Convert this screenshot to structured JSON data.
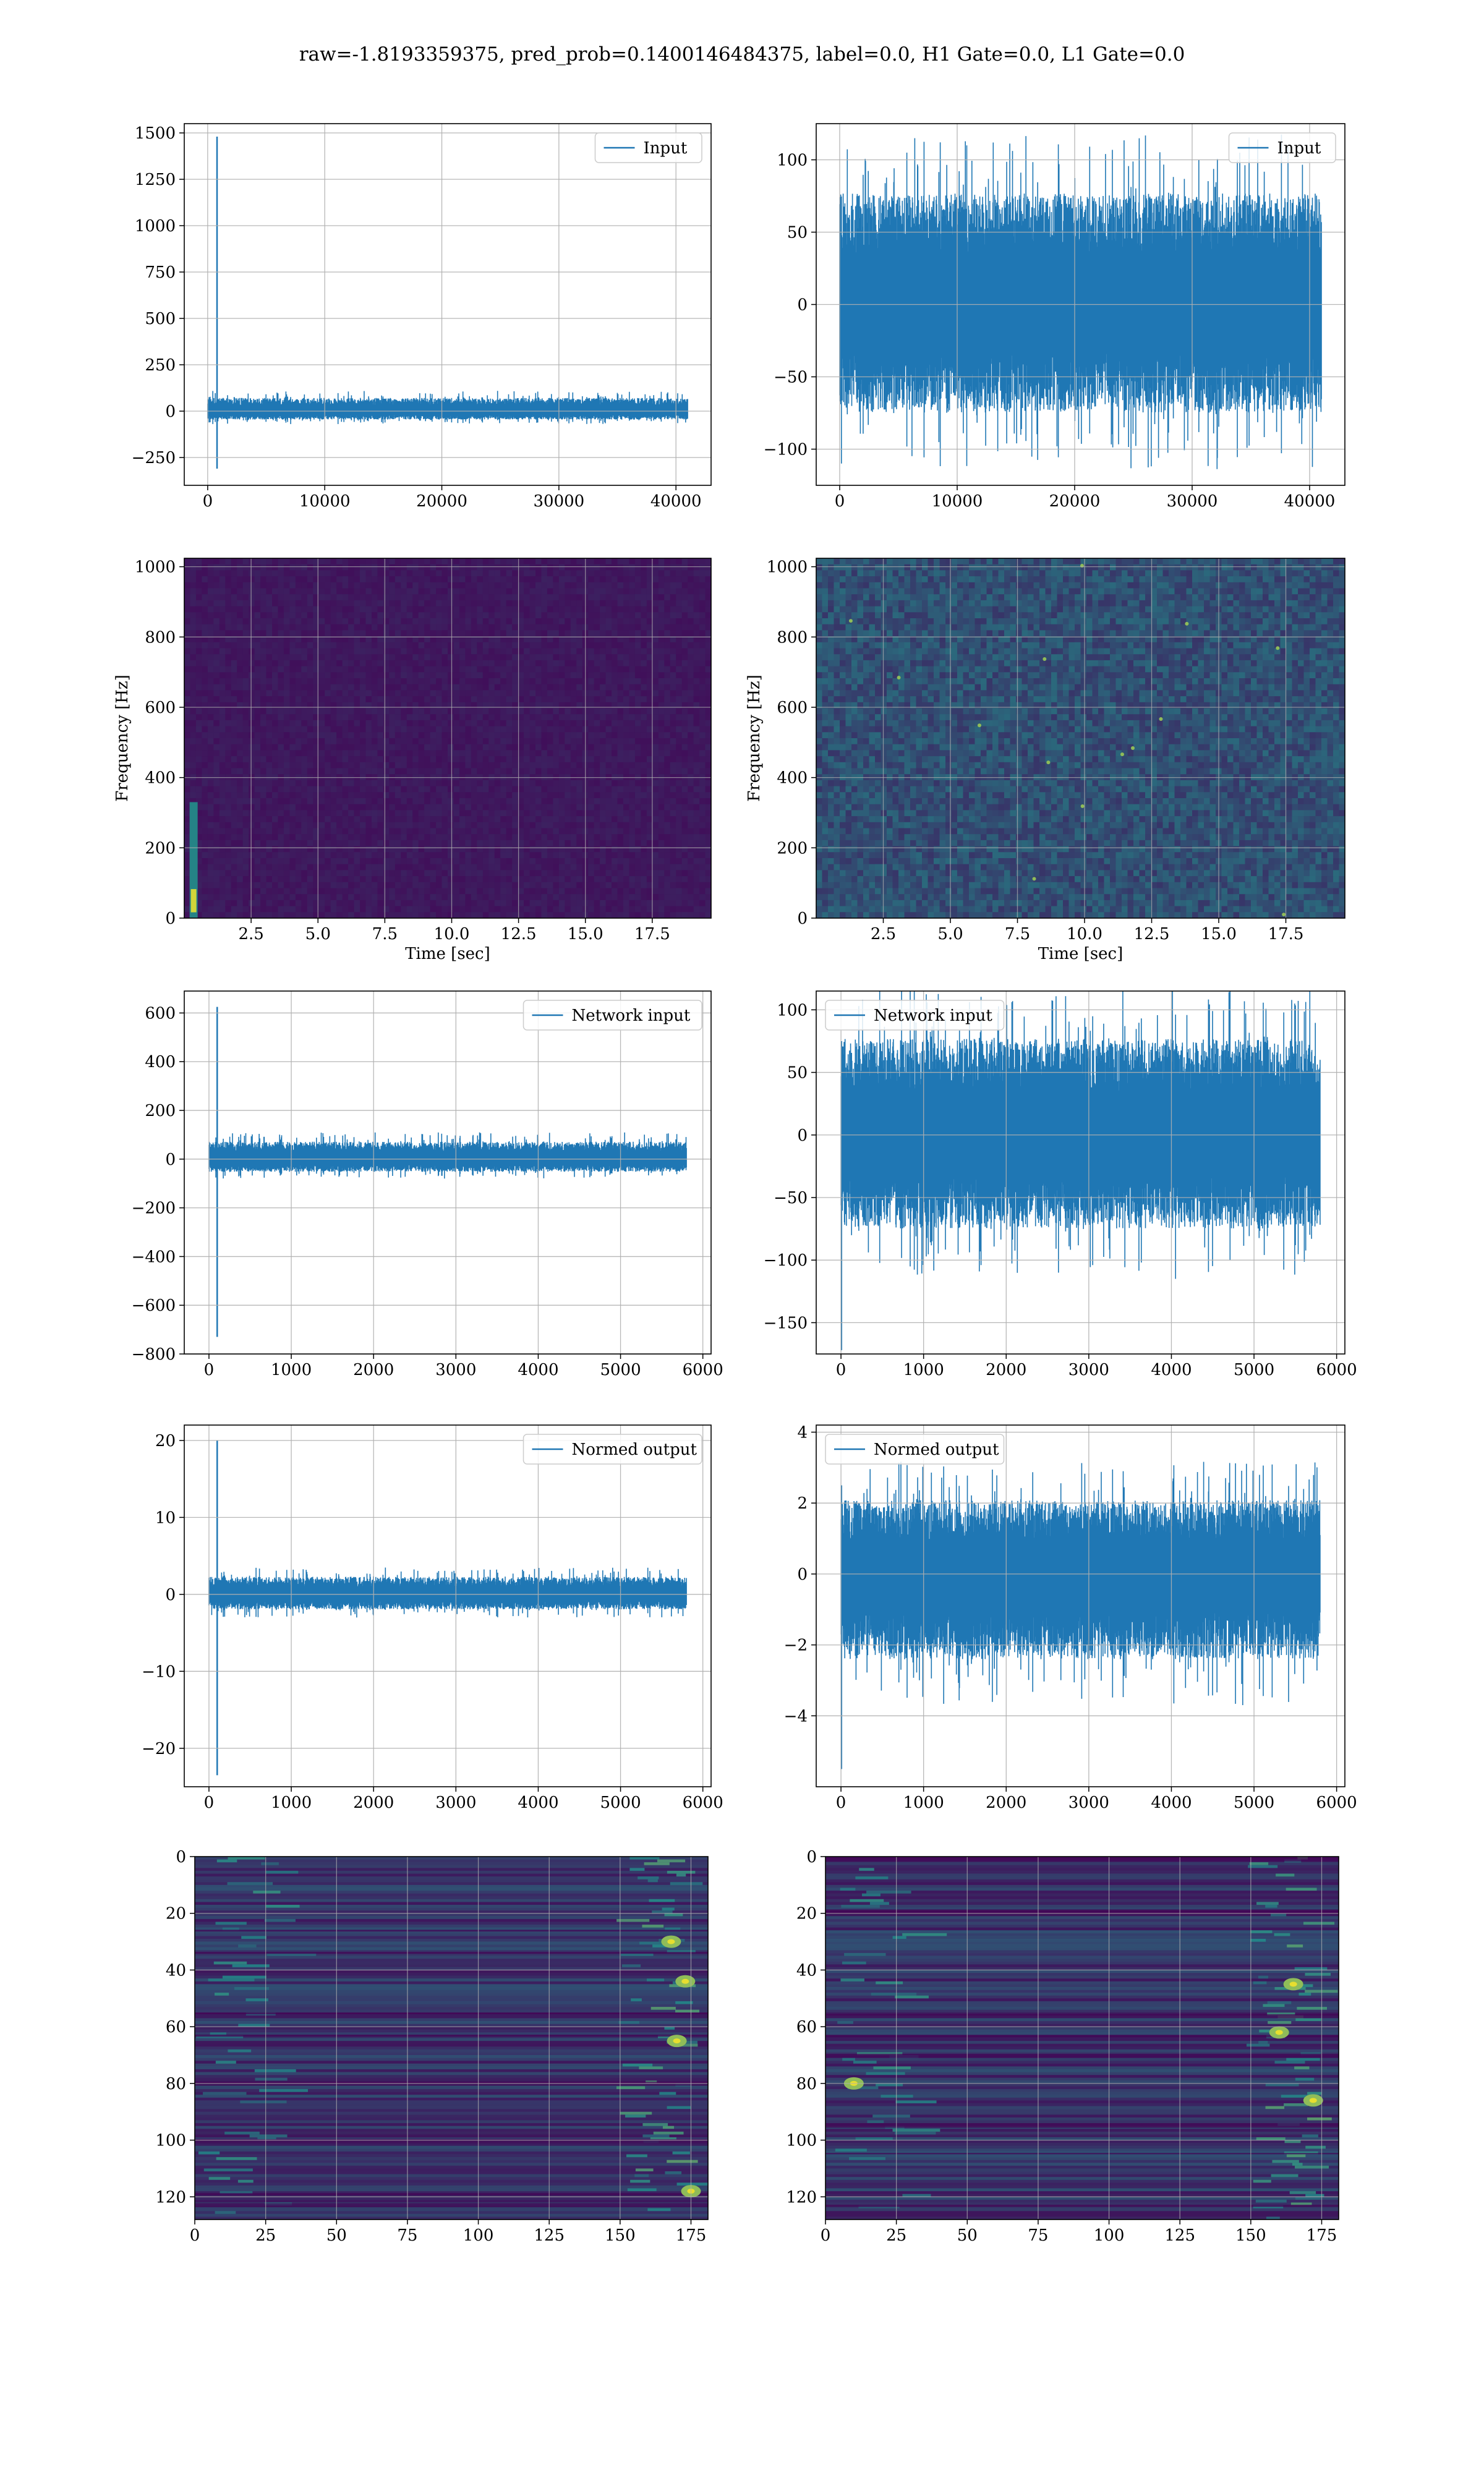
{
  "figure": {
    "title": "raw=-1.8193359375, pred_prob=0.1400146484375, label=0.0, H1 Gate=0.0, L1 Gate=0.0"
  },
  "colors": {
    "line": "#1f77b4",
    "grid": "#b0b0b0",
    "spec_background": "#3b1c5a",
    "viridis_low": "#440154",
    "viridis_mid": "#21918c",
    "viridis_high": "#fde725"
  },
  "chart_data": [
    {
      "id": "p11",
      "type": "line",
      "title": "",
      "xlabel": "",
      "ylabel": "",
      "legend": "Input",
      "legend_loc": "upper-right",
      "xlim": [
        -2000,
        43000
      ],
      "ylim": [
        -400,
        1550
      ],
      "xticks": [
        0,
        10000,
        20000,
        30000,
        40000
      ],
      "yticks": [
        -250,
        0,
        250,
        500,
        750,
        1000,
        1250,
        1500
      ],
      "grid": true,
      "signal": {
        "x_start": 0,
        "x_end": 41000,
        "noise_min": -70,
        "noise_max": 110,
        "spike_x": 800,
        "spike_max": 1480,
        "spike_min": -310
      }
    },
    {
      "id": "p12",
      "type": "line",
      "title": "",
      "xlabel": "",
      "ylabel": "",
      "legend": "Input",
      "legend_loc": "upper-right",
      "xlim": [
        -2000,
        43000
      ],
      "ylim": [
        -125,
        125
      ],
      "xticks": [
        0,
        10000,
        20000,
        30000,
        40000
      ],
      "yticks": [
        -100,
        -50,
        0,
        50,
        100
      ],
      "grid": true,
      "signal": {
        "x_start": 0,
        "x_end": 41000,
        "noise_min": -115,
        "noise_max": 118
      }
    },
    {
      "id": "p21",
      "type": "heatmap",
      "title": "",
      "xlabel": "Time [sec]",
      "ylabel": "Frequency [Hz]",
      "xlim": [
        0,
        19.7
      ],
      "ylim": [
        0,
        1024
      ],
      "xticks": [
        2.5,
        5.0,
        7.5,
        10.0,
        12.5,
        15.0,
        17.5
      ],
      "xtick_labels": [
        "2.5",
        "5.0",
        "7.5",
        "10.0",
        "12.5",
        "15.0",
        "17.5"
      ],
      "yticks": [
        0,
        200,
        400,
        600,
        800,
        1000
      ],
      "grid": true,
      "colormap": "viridis",
      "hotspot": {
        "t_range": [
          0.2,
          0.5
        ],
        "f_range": [
          0,
          330
        ]
      }
    },
    {
      "id": "p22",
      "type": "heatmap",
      "title": "",
      "xlabel": "Time [sec]",
      "ylabel": "Frequency [Hz]",
      "xlim": [
        0,
        19.7
      ],
      "ylim": [
        0,
        1024
      ],
      "xticks": [
        2.5,
        5.0,
        7.5,
        10.0,
        12.5,
        15.0,
        17.5
      ],
      "xtick_labels": [
        "2.5",
        "5.0",
        "7.5",
        "10.0",
        "12.5",
        "15.0",
        "17.5"
      ],
      "yticks": [
        0,
        200,
        400,
        600,
        800,
        1000
      ],
      "grid": true,
      "colormap": "viridis"
    },
    {
      "id": "p31",
      "type": "line",
      "title": "",
      "xlabel": "",
      "ylabel": "",
      "legend": "Network input",
      "legend_loc": "upper-right",
      "xlim": [
        -300,
        6100
      ],
      "ylim": [
        -800,
        690
      ],
      "xticks": [
        0,
        1000,
        2000,
        3000,
        4000,
        5000,
        6000
      ],
      "yticks": [
        -800,
        -600,
        -400,
        -200,
        0,
        200,
        400,
        600
      ],
      "grid": true,
      "signal": {
        "x_start": 0,
        "x_end": 5800,
        "noise_min": -80,
        "noise_max": 110,
        "spike_x": 100,
        "spike_max": 625,
        "spike_min": -730
      }
    },
    {
      "id": "p32",
      "type": "line",
      "title": "",
      "xlabel": "",
      "ylabel": "",
      "legend": "Network input",
      "legend_loc": "upper-left",
      "xlim": [
        -300,
        6100
      ],
      "ylim": [
        -175,
        115
      ],
      "xticks": [
        0,
        1000,
        2000,
        3000,
        4000,
        5000,
        6000
      ],
      "yticks": [
        -150,
        -100,
        -50,
        0,
        50,
        100
      ],
      "grid": true,
      "signal": {
        "x_start": 0,
        "x_end": 5800,
        "noise_min": -115,
        "noise_max": 118,
        "spike_x": 5,
        "spike_max": 75,
        "spike_min": -172
      }
    },
    {
      "id": "p41",
      "type": "line",
      "title": "",
      "xlabel": "",
      "ylabel": "",
      "legend": "Normed output",
      "legend_loc": "upper-right",
      "xlim": [
        -300,
        6100
      ],
      "ylim": [
        -25,
        22
      ],
      "xticks": [
        0,
        1000,
        2000,
        3000,
        4000,
        5000,
        6000
      ],
      "yticks": [
        -20,
        -10,
        0,
        10,
        20
      ],
      "ytick_labels": [
        "−20",
        "−10",
        "0",
        "10",
        "20"
      ],
      "grid": true,
      "signal": {
        "x_start": 0,
        "x_end": 5800,
        "noise_min": -3,
        "noise_max": 3.5,
        "spike_x": 100,
        "spike_max": 20,
        "spike_min": -23.5
      }
    },
    {
      "id": "p42",
      "type": "line",
      "title": "",
      "xlabel": "",
      "ylabel": "",
      "legend": "Normed output",
      "legend_loc": "upper-left",
      "xlim": [
        -300,
        6100
      ],
      "ylim": [
        -6,
        4.2
      ],
      "xticks": [
        0,
        1000,
        2000,
        3000,
        4000,
        5000,
        6000
      ],
      "yticks": [
        -4,
        -2,
        0,
        2,
        4
      ],
      "ytick_labels": [
        "−4",
        "−2",
        "0",
        "2",
        "4"
      ],
      "grid": true,
      "signal": {
        "x_start": 0,
        "x_end": 5800,
        "noise_min": -3.7,
        "noise_max": 3.2,
        "spike_x": 5,
        "spike_max": 2.5,
        "spike_min": -5.5
      }
    },
    {
      "id": "p51",
      "type": "heatmap",
      "title": "",
      "xlabel": "",
      "ylabel": "",
      "xlim": [
        0,
        181
      ],
      "ylim": [
        128,
        0
      ],
      "inverted_y": true,
      "xticks": [
        0,
        25,
        50,
        75,
        100,
        125,
        150,
        175
      ],
      "yticks": [
        0,
        20,
        40,
        60,
        80,
        100,
        120
      ],
      "grid": true,
      "colormap": "viridis",
      "style": "feature-rows",
      "hotspots": [
        [
          173,
          44
        ],
        [
          175,
          118
        ],
        [
          170,
          65
        ],
        [
          168,
          30
        ]
      ]
    },
    {
      "id": "p52",
      "type": "heatmap",
      "title": "",
      "xlabel": "",
      "ylabel": "",
      "xlim": [
        0,
        181
      ],
      "ylim": [
        128,
        0
      ],
      "inverted_y": true,
      "xticks": [
        0,
        25,
        50,
        75,
        100,
        125,
        150,
        175
      ],
      "yticks": [
        0,
        20,
        40,
        60,
        80,
        100,
        120
      ],
      "grid": true,
      "colormap": "viridis",
      "style": "feature-rows",
      "hotspots": [
        [
          172,
          86
        ],
        [
          165,
          45
        ],
        [
          160,
          62
        ],
        [
          10,
          80
        ]
      ]
    }
  ]
}
